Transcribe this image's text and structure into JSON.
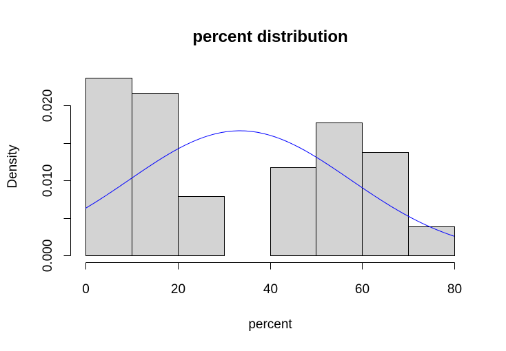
{
  "chart_data": {
    "type": "bar",
    "subtype": "histogram",
    "title": "percent distribution",
    "xlabel": "percent",
    "ylabel": "Density",
    "bins": [
      {
        "start": 0,
        "end": 10,
        "density": 0.0237
      },
      {
        "start": 10,
        "end": 20,
        "density": 0.0217
      },
      {
        "start": 20,
        "end": 30,
        "density": 0.0079
      },
      {
        "start": 30,
        "end": 40,
        "density": 0.0
      },
      {
        "start": 40,
        "end": 50,
        "density": 0.0118
      },
      {
        "start": 50,
        "end": 60,
        "density": 0.0177
      },
      {
        "start": 60,
        "end": 70,
        "density": 0.0138
      },
      {
        "start": 70,
        "end": 80,
        "density": 0.0039
      }
    ],
    "x_ticks": [
      0,
      20,
      40,
      60,
      80
    ],
    "x_tick_labels": [
      "0",
      "20",
      "40",
      "60",
      "80"
    ],
    "y_ticks": [
      0.0,
      0.005,
      0.01,
      0.015,
      0.02
    ],
    "y_tick_labels": [
      "0.000",
      "",
      "0.010",
      "",
      "0.020"
    ],
    "xlim": [
      0,
      80
    ],
    "ylim": [
      0,
      0.0237
    ],
    "normal_curve": {
      "mean": 33.5,
      "sd": 24.0
    },
    "grid": false,
    "colors": {
      "bar_fill": "#d3d3d3",
      "bar_stroke": "#000000",
      "curve": "#0000ff",
      "axis": "#000000",
      "background": "#ffffff"
    }
  }
}
